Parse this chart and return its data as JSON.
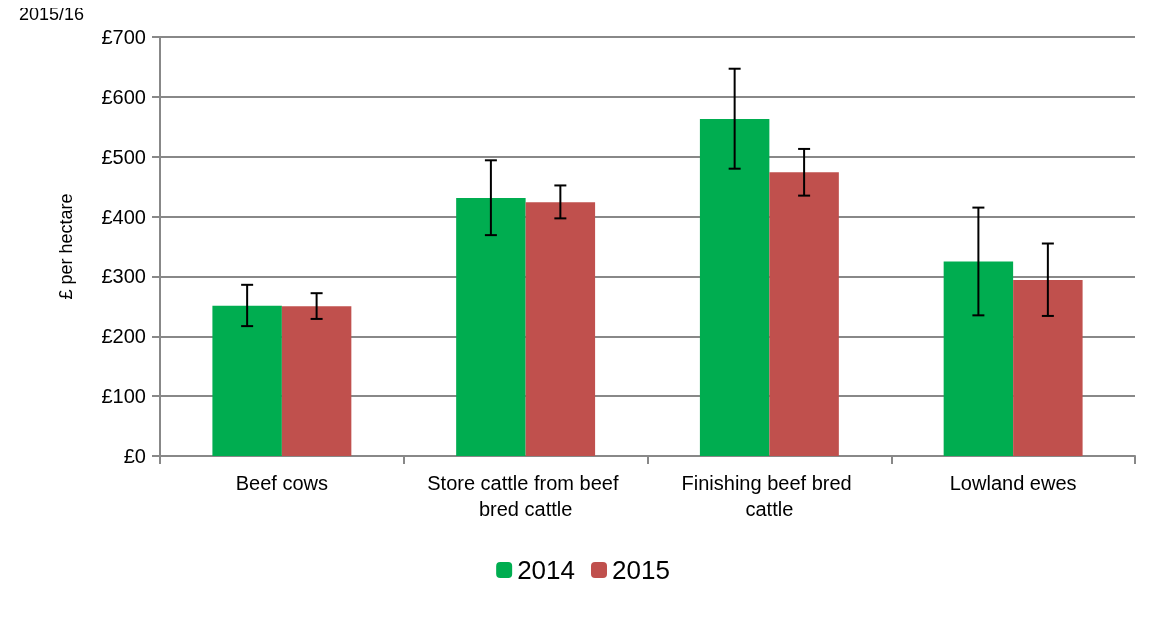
{
  "chart_data": {
    "type": "bar",
    "title": "2015/16",
    "ylabel": "£ per hectare",
    "categories": [
      "Beef cows",
      "Store cattle from beef bred cattle",
      "Finishing beef bred cattle",
      "Lowland ewes"
    ],
    "series": [
      {
        "name": "2014",
        "color": "#00ad50",
        "values": [
          251,
          431,
          563,
          325
        ],
        "errors": [
          [
            217,
            286
          ],
          [
            369,
            494
          ],
          [
            480,
            647
          ],
          [
            235,
            415
          ]
        ]
      },
      {
        "name": "2015",
        "color": "#c0504d",
        "values": [
          250,
          424,
          474,
          294
        ],
        "errors": [
          [
            229,
            272
          ],
          [
            397,
            452
          ],
          [
            435,
            513
          ],
          [
            234,
            355
          ]
        ]
      }
    ],
    "ylim": [
      0,
      700
    ],
    "yticks": [
      {
        "value": 0,
        "label": "£0"
      },
      {
        "value": 100,
        "label": "£100"
      },
      {
        "value": 200,
        "label": "£200"
      },
      {
        "value": 300,
        "label": "£300"
      },
      {
        "value": 400,
        "label": "£400"
      },
      {
        "value": 500,
        "label": "£500"
      },
      {
        "value": 600,
        "label": "£600"
      },
      {
        "value": 700,
        "label": "£700"
      }
    ],
    "grid": "y",
    "legend": "bottom"
  }
}
